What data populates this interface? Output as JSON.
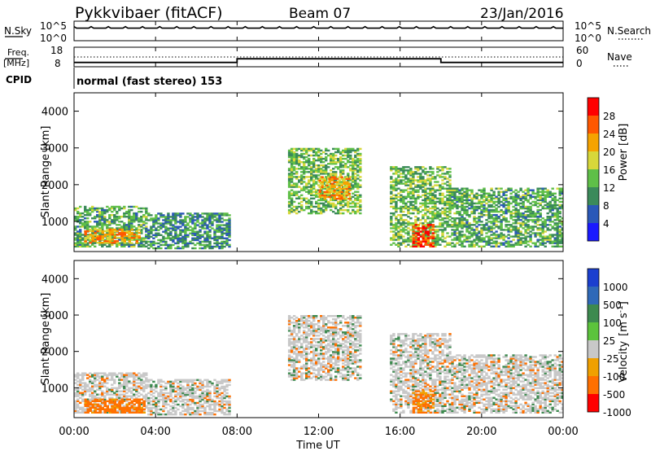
{
  "header": {
    "station": "Pykkvibaer (fitACF)",
    "beam": "Beam 07",
    "date": "23/Jan/2016"
  },
  "noise_panel": {
    "left_label": "N.Sky",
    "right_label": "N.Search",
    "left_ticks": [
      "10^5",
      "10^0"
    ],
    "right_ticks": [
      "10^5",
      "10^0"
    ]
  },
  "freq_panel": {
    "left_label_top": "Freq.",
    "left_label_bottom": "[MHz]",
    "right_label": "Nave",
    "left_ticks": [
      "18",
      "8"
    ],
    "right_ticks": [
      "60",
      "0"
    ]
  },
  "cpid": {
    "label": "CPID",
    "value": "normal (fast stereo) 153"
  },
  "colors": {
    "power": [
      "#1a1aff",
      "#2a58b8",
      "#3b8a5a",
      "#5fbf48",
      "#d7d73a",
      "#f5a300",
      "#ff5800",
      "#ff0000"
    ],
    "velocity": [
      "#1b3fcf",
      "#2f69b8",
      "#3d8a4f",
      "#5cc33c",
      "#c8c8c8",
      "#f0a000",
      "#ff7000",
      "#ff0000"
    ]
  },
  "chart_data": [
    {
      "type": "line",
      "title": "N.Sky",
      "x": [
        "00:00",
        "04:00",
        "08:00",
        "12:00",
        "16:00",
        "20:00",
        "00:00"
      ],
      "series": [
        {
          "name": "N.Sky",
          "values": [
            3.2,
            3.2,
            3.1,
            3.3,
            3.3,
            3.2,
            3.2
          ]
        }
      ]
    },
    {
      "type": "line",
      "title": "Freq.",
      "xlabel": "Time UT",
      "ylabel": "[MHz]",
      "ylim": [
        8,
        18
      ],
      "x": [
        "00:00",
        "08:00",
        "08:00",
        "18:00",
        "18:00",
        "00:00"
      ],
      "series": [
        {
          "name": "Freq.",
          "values": [
            10.2,
            10.2,
            12.1,
            12.1,
            10.2,
            10.2
          ]
        },
        {
          "name": "Nave",
          "values": [
            30,
            30,
            30,
            30,
            30,
            30
          ]
        }
      ]
    },
    {
      "type": "heatmap",
      "xlabel": "Time UT",
      "ylabel": "Slant Range [km]",
      "ylim": [
        180,
        4500
      ],
      "y_ticks": [
        "1000",
        "2000",
        "3000",
        "4000"
      ],
      "x_ticks": [
        "00:00",
        "04:00",
        "08:00",
        "12:00",
        "16:00",
        "20:00",
        "00:00"
      ],
      "colorbar": {
        "label": "Power [dB]",
        "ticks": [
          "4",
          "8",
          "12",
          "16",
          "20",
          "24",
          "28"
        ],
        "range": [
          0,
          32
        ]
      },
      "regions": [
        {
          "time_start_h": 0.0,
          "time_end_h": 3.6,
          "range_min_km": 300,
          "range_max_km": 1400,
          "power_db": 12
        },
        {
          "time_start_h": 0.5,
          "time_end_h": 3.2,
          "range_min_km": 400,
          "range_max_km": 800,
          "power_db": 22
        },
        {
          "time_start_h": 3.6,
          "time_end_h": 7.6,
          "range_min_km": 250,
          "range_max_km": 1200,
          "power_db": 10
        },
        {
          "time_start_h": 10.5,
          "time_end_h": 14.0,
          "range_min_km": 1200,
          "range_max_km": 3000,
          "power_db": 14
        },
        {
          "time_start_h": 12.0,
          "time_end_h": 13.5,
          "range_min_km": 1600,
          "range_max_km": 2200,
          "power_db": 22
        },
        {
          "time_start_h": 15.5,
          "time_end_h": 18.5,
          "range_min_km": 300,
          "range_max_km": 2500,
          "power_db": 14
        },
        {
          "time_start_h": 16.6,
          "time_end_h": 17.6,
          "range_min_km": 300,
          "range_max_km": 900,
          "power_db": 28
        },
        {
          "time_start_h": 18.5,
          "time_end_h": 24.0,
          "range_min_km": 300,
          "range_max_km": 1900,
          "power_db": 12
        }
      ]
    },
    {
      "type": "heatmap",
      "xlabel": "Time UT",
      "ylabel": "Slant Range [km]",
      "ylim": [
        180,
        4500
      ],
      "y_ticks": [
        "1000",
        "2000",
        "3000",
        "4000"
      ],
      "x_ticks": [
        "00:00",
        "04:00",
        "08:00",
        "12:00",
        "16:00",
        "20:00",
        "00:00"
      ],
      "colorbar": {
        "label": "Velocity [m s^-1]",
        "ticks": [
          "1000",
          "500",
          "100",
          "25",
          "-25",
          "-100",
          "-500",
          "-1000"
        ]
      },
      "regions": [
        {
          "time_start_h": 0.0,
          "time_end_h": 3.6,
          "range_min_km": 300,
          "range_max_km": 1400,
          "velocity": 0
        },
        {
          "time_start_h": 0.5,
          "time_end_h": 3.5,
          "range_min_km": 300,
          "range_max_km": 700,
          "velocity": -150
        },
        {
          "time_start_h": 3.6,
          "time_end_h": 7.6,
          "range_min_km": 250,
          "range_max_km": 1200,
          "velocity": 0
        },
        {
          "time_start_h": 10.5,
          "time_end_h": 14.0,
          "range_min_km": 1200,
          "range_max_km": 3000,
          "velocity": 0
        },
        {
          "time_start_h": 15.5,
          "time_end_h": 18.5,
          "range_min_km": 300,
          "range_max_km": 2500,
          "velocity": 0
        },
        {
          "time_start_h": 16.6,
          "time_end_h": 17.6,
          "range_min_km": 300,
          "range_max_km": 900,
          "velocity": -120
        },
        {
          "time_start_h": 18.5,
          "time_end_h": 24.0,
          "range_min_km": 300,
          "range_max_km": 1900,
          "velocity": 0
        }
      ]
    }
  ],
  "colorbar_power_label": "Power [dB]",
  "colorbar_velocity_label": "Velocity",
  "colorbar_velocity_unit": "[m s",
  "colorbar_velocity_exp": "-1",
  "colorbar_velocity_close": "]",
  "axis": {
    "xlabel": "Time UT",
    "ylabel": "Slant Range [km]"
  }
}
